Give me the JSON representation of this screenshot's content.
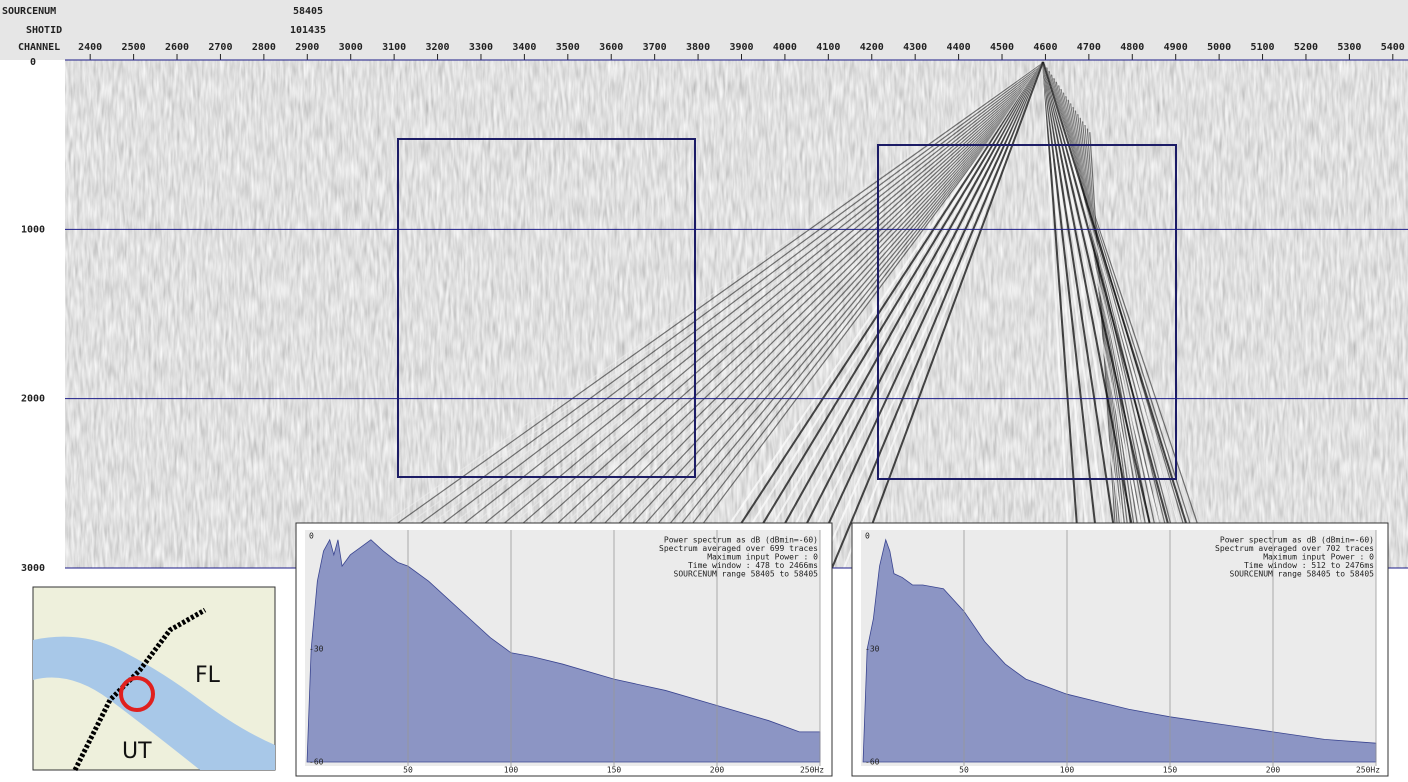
{
  "header": {
    "sourcenum_label": "SOURCENUM",
    "sourcenum": "58405",
    "shotid_label": "SHOTID",
    "shotid": "101435",
    "channel_label": "CHANNEL"
  },
  "section": {
    "xlim": [
      2342,
      5435
    ],
    "xticks": [
      2400,
      2500,
      2600,
      2700,
      2800,
      2900,
      3000,
      3100,
      3200,
      3300,
      3400,
      3500,
      3600,
      3700,
      3800,
      3900,
      4000,
      4100,
      4200,
      4300,
      4400,
      4500,
      4600,
      4700,
      4800,
      4900,
      5000,
      5100,
      5200,
      5300,
      5400
    ],
    "ylim": [
      0,
      3000
    ],
    "yticks": [
      0,
      1000,
      2000,
      3000
    ],
    "grid": true
  },
  "spectra": [
    {
      "lines": [
        "Power spectrum as dB (dBmin=-60)",
        "Spectrum averaged over 699 traces",
        "Maximum input Power : 0",
        "Time window : 478 to 2466ms",
        "SOURCENUM range 58405 to 58405"
      ],
      "xlim": [
        0,
        250
      ],
      "ylim": [
        -60,
        0
      ],
      "xticks": [
        50,
        100,
        150,
        200,
        {
          "value": 250,
          "label": "250Hz"
        }
      ],
      "yticks": [
        0,
        -30,
        -60
      ],
      "color": "#8c95c4",
      "x": [
        1,
        3,
        6,
        9,
        12,
        14,
        16,
        18,
        22,
        27,
        32,
        38,
        45,
        50,
        60,
        70,
        80,
        90,
        100,
        110,
        125,
        150,
        175,
        200,
        225,
        240,
        250
      ],
      "values": [
        -60,
        -30,
        -12,
        -4,
        -1,
        -5,
        -1,
        -8,
        -5,
        -3,
        -1,
        -4,
        -7,
        -8,
        -12,
        -17,
        -22,
        -27,
        -31,
        -32,
        -34,
        -38,
        -41,
        -45,
        -49,
        -52,
        -52
      ]
    },
    {
      "lines": [
        "Power spectrum as dB (dBmin=-60)",
        "Spectrum averaged over 702 traces",
        "Maximum input Power : 0",
        "Time window : 512 to 2476ms",
        "SOURCENUM range 58405 to 58405"
      ],
      "xlim": [
        0,
        250
      ],
      "ylim": [
        -60,
        0
      ],
      "xticks": [
        50,
        100,
        150,
        200,
        {
          "value": 250,
          "label": "250Hz"
        }
      ],
      "yticks": [
        0,
        -30,
        -60
      ],
      "color": "#8c95c4",
      "x": [
        1,
        3,
        6,
        9,
        12,
        14,
        16,
        20,
        25,
        30,
        40,
        50,
        60,
        70,
        80,
        90,
        100,
        115,
        130,
        150,
        175,
        200,
        225,
        250
      ],
      "values": [
        -60,
        -30,
        -22,
        -8,
        -1,
        -4,
        -10,
        -11,
        -13,
        -13,
        -14,
        -20,
        -28,
        -34,
        -38,
        -40,
        -42,
        -44,
        -46,
        -48,
        -50,
        -52,
        -54,
        -55
      ]
    }
  ],
  "map": {
    "label_fl": "FL",
    "label_ut": "UT"
  }
}
